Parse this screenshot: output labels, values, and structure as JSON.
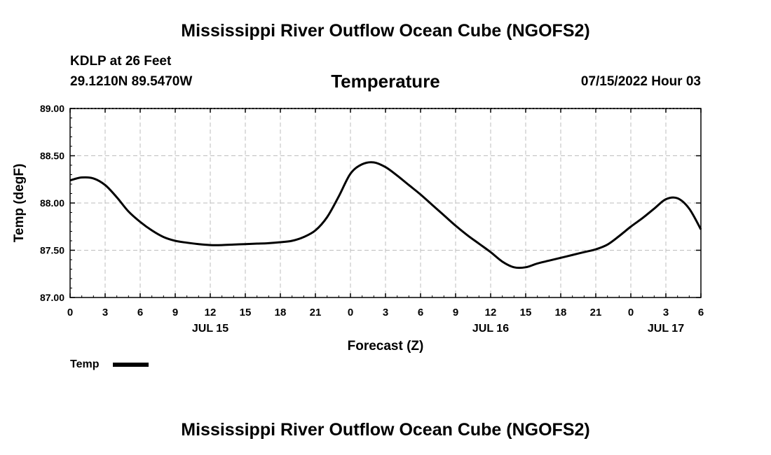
{
  "header": {
    "main_title": "Mississippi River Outflow Ocean Cube (NGOFS2)",
    "station": "KDLP at 26 Feet",
    "coords": "29.1210N  89.5470W",
    "variable_title": "Temperature",
    "datetime": "07/15/2022 Hour 03"
  },
  "footer": {
    "title": "Mississippi River Outflow Ocean Cube (NGOFS2)"
  },
  "chart_data": {
    "type": "line",
    "title": "Temperature",
    "xlabel": "Forecast (Z)",
    "ylabel": "Temp (degF)",
    "xlim": [
      0,
      54
    ],
    "ylim": [
      87.0,
      89.0
    ],
    "grid": true,
    "x_tick_values": [
      0,
      3,
      6,
      9,
      12,
      15,
      18,
      21,
      24,
      27,
      30,
      33,
      36,
      39,
      42,
      45,
      48,
      51,
      54
    ],
    "x_tick_labels": [
      "0",
      "3",
      "6",
      "9",
      "12",
      "15",
      "18",
      "21",
      "0",
      "3",
      "6",
      "9",
      "12",
      "15",
      "18",
      "21",
      "0",
      "3",
      "6"
    ],
    "day_labels": [
      {
        "x": 12,
        "label": "JUL 15"
      },
      {
        "x": 36,
        "label": "JUL 16"
      },
      {
        "x": 51,
        "label": "JUL 17"
      }
    ],
    "y_tick_values": [
      87.0,
      87.5,
      88.0,
      88.5,
      89.0
    ],
    "y_tick_labels": [
      "87.00",
      "87.50",
      "88.00",
      "88.50",
      "89.00"
    ],
    "legend": {
      "label": "Temp",
      "placement": "bottom-left"
    },
    "series": [
      {
        "name": "Temp",
        "color": "#000000",
        "x": [
          0,
          1,
          2,
          3,
          4,
          5,
          6,
          7,
          8,
          9,
          10,
          11,
          12,
          13,
          14,
          15,
          16,
          17,
          18,
          19,
          20,
          21,
          22,
          23,
          24,
          25,
          26,
          27,
          28,
          29,
          30,
          31,
          32,
          33,
          34,
          35,
          36,
          37,
          38,
          39,
          40,
          41,
          42,
          43,
          44,
          45,
          46,
          47,
          48,
          49,
          50,
          51,
          52,
          53,
          54
        ],
        "values": [
          88.24,
          88.27,
          88.26,
          88.19,
          88.06,
          87.91,
          87.8,
          87.71,
          87.64,
          87.6,
          87.58,
          87.565,
          87.555,
          87.555,
          87.56,
          87.565,
          87.57,
          87.575,
          87.585,
          87.6,
          87.64,
          87.71,
          87.85,
          88.07,
          88.31,
          88.41,
          88.43,
          88.38,
          88.29,
          88.19,
          88.09,
          87.98,
          87.87,
          87.76,
          87.66,
          87.57,
          87.48,
          87.38,
          87.32,
          87.32,
          87.36,
          87.39,
          87.42,
          87.45,
          87.48,
          87.51,
          87.56,
          87.65,
          87.75,
          87.84,
          87.94,
          88.04,
          88.05,
          87.94,
          87.72
        ]
      }
    ]
  }
}
